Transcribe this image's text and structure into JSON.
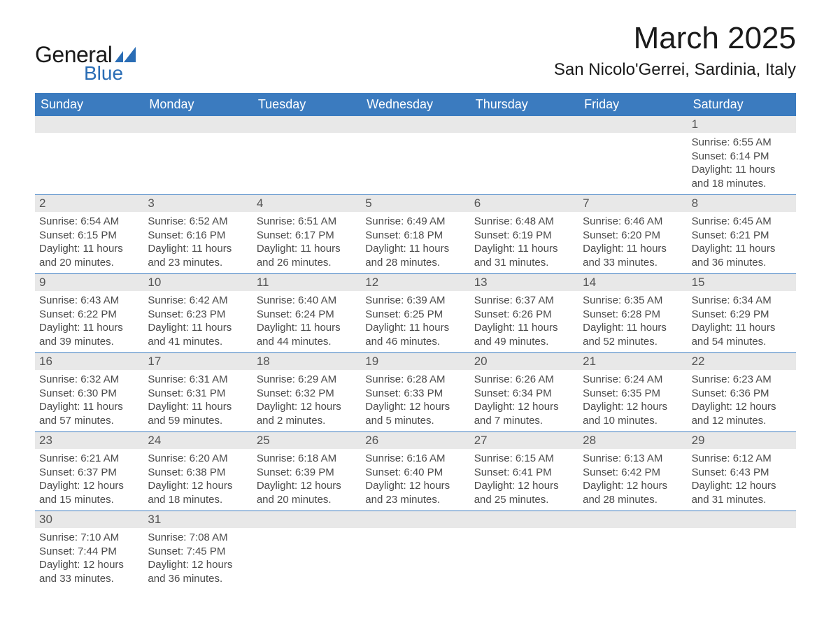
{
  "logo": {
    "text_general": "General",
    "text_blue": "Blue",
    "shape_color": "#2a6db5"
  },
  "title": "March 2025",
  "location": "San Nicolo'Gerrei, Sardinia, Italy",
  "colors": {
    "header_bg": "#3b7bbf",
    "header_text": "#ffffff",
    "daynum_bg": "#e8e8e8",
    "row_border": "#3b7bbf",
    "body_text": "#4a4a4a"
  },
  "weekdays": [
    "Sunday",
    "Monday",
    "Tuesday",
    "Wednesday",
    "Thursday",
    "Friday",
    "Saturday"
  ],
  "weeks": [
    [
      null,
      null,
      null,
      null,
      null,
      null,
      {
        "n": "1",
        "sunrise": "Sunrise: 6:55 AM",
        "sunset": "Sunset: 6:14 PM",
        "day1": "Daylight: 11 hours",
        "day2": "and 18 minutes."
      }
    ],
    [
      {
        "n": "2",
        "sunrise": "Sunrise: 6:54 AM",
        "sunset": "Sunset: 6:15 PM",
        "day1": "Daylight: 11 hours",
        "day2": "and 20 minutes."
      },
      {
        "n": "3",
        "sunrise": "Sunrise: 6:52 AM",
        "sunset": "Sunset: 6:16 PM",
        "day1": "Daylight: 11 hours",
        "day2": "and 23 minutes."
      },
      {
        "n": "4",
        "sunrise": "Sunrise: 6:51 AM",
        "sunset": "Sunset: 6:17 PM",
        "day1": "Daylight: 11 hours",
        "day2": "and 26 minutes."
      },
      {
        "n": "5",
        "sunrise": "Sunrise: 6:49 AM",
        "sunset": "Sunset: 6:18 PM",
        "day1": "Daylight: 11 hours",
        "day2": "and 28 minutes."
      },
      {
        "n": "6",
        "sunrise": "Sunrise: 6:48 AM",
        "sunset": "Sunset: 6:19 PM",
        "day1": "Daylight: 11 hours",
        "day2": "and 31 minutes."
      },
      {
        "n": "7",
        "sunrise": "Sunrise: 6:46 AM",
        "sunset": "Sunset: 6:20 PM",
        "day1": "Daylight: 11 hours",
        "day2": "and 33 minutes."
      },
      {
        "n": "8",
        "sunrise": "Sunrise: 6:45 AM",
        "sunset": "Sunset: 6:21 PM",
        "day1": "Daylight: 11 hours",
        "day2": "and 36 minutes."
      }
    ],
    [
      {
        "n": "9",
        "sunrise": "Sunrise: 6:43 AM",
        "sunset": "Sunset: 6:22 PM",
        "day1": "Daylight: 11 hours",
        "day2": "and 39 minutes."
      },
      {
        "n": "10",
        "sunrise": "Sunrise: 6:42 AM",
        "sunset": "Sunset: 6:23 PM",
        "day1": "Daylight: 11 hours",
        "day2": "and 41 minutes."
      },
      {
        "n": "11",
        "sunrise": "Sunrise: 6:40 AM",
        "sunset": "Sunset: 6:24 PM",
        "day1": "Daylight: 11 hours",
        "day2": "and 44 minutes."
      },
      {
        "n": "12",
        "sunrise": "Sunrise: 6:39 AM",
        "sunset": "Sunset: 6:25 PM",
        "day1": "Daylight: 11 hours",
        "day2": "and 46 minutes."
      },
      {
        "n": "13",
        "sunrise": "Sunrise: 6:37 AM",
        "sunset": "Sunset: 6:26 PM",
        "day1": "Daylight: 11 hours",
        "day2": "and 49 minutes."
      },
      {
        "n": "14",
        "sunrise": "Sunrise: 6:35 AM",
        "sunset": "Sunset: 6:28 PM",
        "day1": "Daylight: 11 hours",
        "day2": "and 52 minutes."
      },
      {
        "n": "15",
        "sunrise": "Sunrise: 6:34 AM",
        "sunset": "Sunset: 6:29 PM",
        "day1": "Daylight: 11 hours",
        "day2": "and 54 minutes."
      }
    ],
    [
      {
        "n": "16",
        "sunrise": "Sunrise: 6:32 AM",
        "sunset": "Sunset: 6:30 PM",
        "day1": "Daylight: 11 hours",
        "day2": "and 57 minutes."
      },
      {
        "n": "17",
        "sunrise": "Sunrise: 6:31 AM",
        "sunset": "Sunset: 6:31 PM",
        "day1": "Daylight: 11 hours",
        "day2": "and 59 minutes."
      },
      {
        "n": "18",
        "sunrise": "Sunrise: 6:29 AM",
        "sunset": "Sunset: 6:32 PM",
        "day1": "Daylight: 12 hours",
        "day2": "and 2 minutes."
      },
      {
        "n": "19",
        "sunrise": "Sunrise: 6:28 AM",
        "sunset": "Sunset: 6:33 PM",
        "day1": "Daylight: 12 hours",
        "day2": "and 5 minutes."
      },
      {
        "n": "20",
        "sunrise": "Sunrise: 6:26 AM",
        "sunset": "Sunset: 6:34 PM",
        "day1": "Daylight: 12 hours",
        "day2": "and 7 minutes."
      },
      {
        "n": "21",
        "sunrise": "Sunrise: 6:24 AM",
        "sunset": "Sunset: 6:35 PM",
        "day1": "Daylight: 12 hours",
        "day2": "and 10 minutes."
      },
      {
        "n": "22",
        "sunrise": "Sunrise: 6:23 AM",
        "sunset": "Sunset: 6:36 PM",
        "day1": "Daylight: 12 hours",
        "day2": "and 12 minutes."
      }
    ],
    [
      {
        "n": "23",
        "sunrise": "Sunrise: 6:21 AM",
        "sunset": "Sunset: 6:37 PM",
        "day1": "Daylight: 12 hours",
        "day2": "and 15 minutes."
      },
      {
        "n": "24",
        "sunrise": "Sunrise: 6:20 AM",
        "sunset": "Sunset: 6:38 PM",
        "day1": "Daylight: 12 hours",
        "day2": "and 18 minutes."
      },
      {
        "n": "25",
        "sunrise": "Sunrise: 6:18 AM",
        "sunset": "Sunset: 6:39 PM",
        "day1": "Daylight: 12 hours",
        "day2": "and 20 minutes."
      },
      {
        "n": "26",
        "sunrise": "Sunrise: 6:16 AM",
        "sunset": "Sunset: 6:40 PM",
        "day1": "Daylight: 12 hours",
        "day2": "and 23 minutes."
      },
      {
        "n": "27",
        "sunrise": "Sunrise: 6:15 AM",
        "sunset": "Sunset: 6:41 PM",
        "day1": "Daylight: 12 hours",
        "day2": "and 25 minutes."
      },
      {
        "n": "28",
        "sunrise": "Sunrise: 6:13 AM",
        "sunset": "Sunset: 6:42 PM",
        "day1": "Daylight: 12 hours",
        "day2": "and 28 minutes."
      },
      {
        "n": "29",
        "sunrise": "Sunrise: 6:12 AM",
        "sunset": "Sunset: 6:43 PM",
        "day1": "Daylight: 12 hours",
        "day2": "and 31 minutes."
      }
    ],
    [
      {
        "n": "30",
        "sunrise": "Sunrise: 7:10 AM",
        "sunset": "Sunset: 7:44 PM",
        "day1": "Daylight: 12 hours",
        "day2": "and 33 minutes."
      },
      {
        "n": "31",
        "sunrise": "Sunrise: 7:08 AM",
        "sunset": "Sunset: 7:45 PM",
        "day1": "Daylight: 12 hours",
        "day2": "and 36 minutes."
      },
      null,
      null,
      null,
      null,
      null
    ]
  ]
}
